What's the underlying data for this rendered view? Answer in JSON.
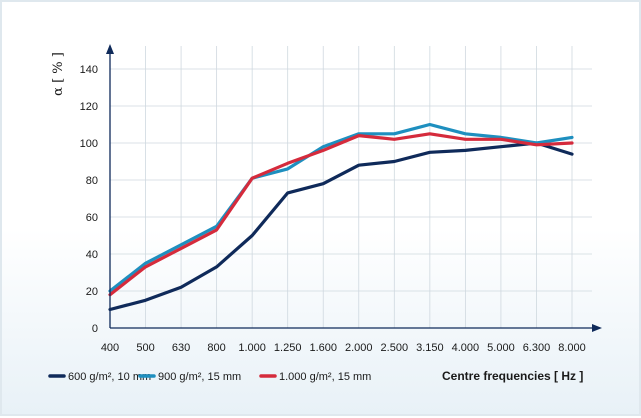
{
  "chart_data": {
    "type": "line",
    "ylabel": "α [ % ]",
    "xlabel": "Centre frequencies [ Hz ]",
    "categories": [
      "400",
      "500",
      "630",
      "800",
      "1.000",
      "1.250",
      "1.600",
      "2.000",
      "2.500",
      "3.150",
      "4.000",
      "5.000",
      "6.300",
      "8.000"
    ],
    "y_ticks": [
      0,
      20,
      40,
      60,
      80,
      100,
      120,
      140
    ],
    "ylim": [
      0,
      150
    ],
    "grid": true,
    "legend_position": "bottom",
    "series": [
      {
        "name": "600 g/m², 10 mm",
        "color": "#0f2a5a",
        "values": [
          10,
          15,
          22,
          33,
          50,
          73,
          78,
          88,
          90,
          95,
          96,
          98,
          100,
          94
        ]
      },
      {
        "name": "900 g/m², 15 mm",
        "color": "#1e8fbf",
        "values": [
          20,
          35,
          45,
          55,
          81,
          86,
          98,
          105,
          105,
          110,
          105,
          103,
          100,
          103
        ]
      },
      {
        "name": "1.000 g/m², 15 mm",
        "color": "#d52b3c",
        "values": [
          18,
          33,
          43,
          53,
          81,
          89,
          96,
          104,
          102,
          105,
          102,
          102,
          99,
          100
        ]
      }
    ]
  }
}
